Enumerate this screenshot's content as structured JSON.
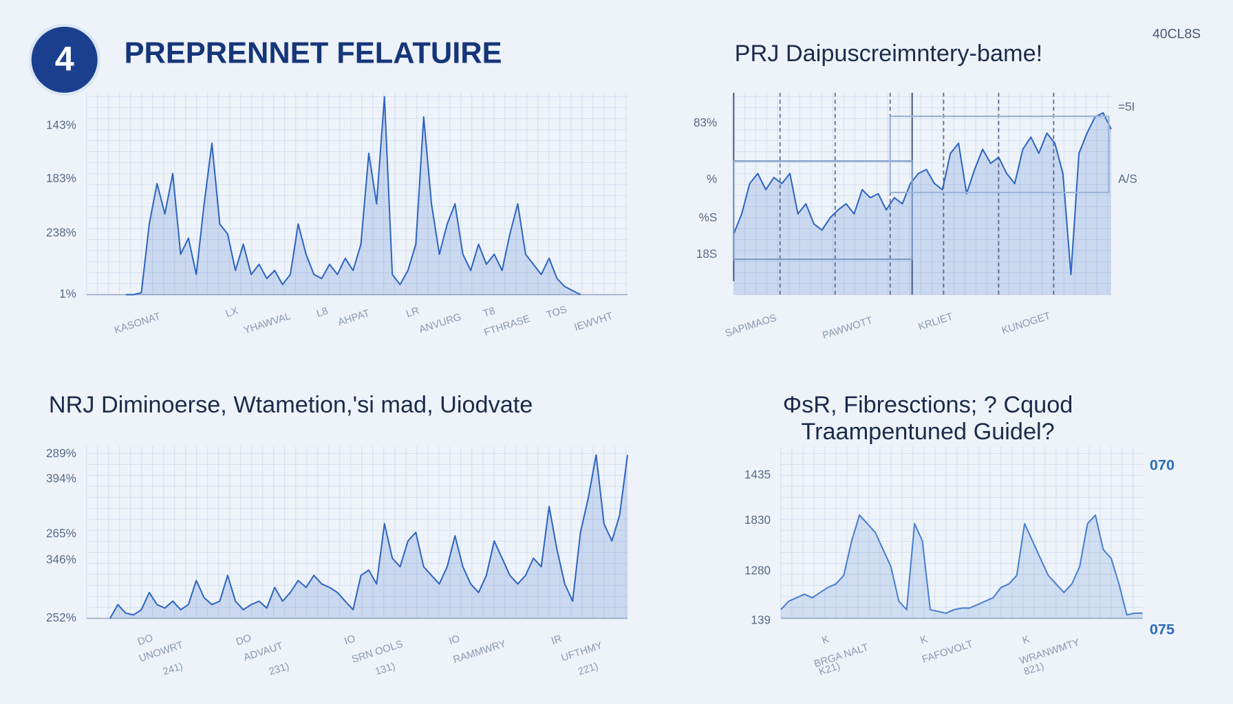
{
  "header": {
    "badge": "4",
    "title": "PREPRENNET FELATUIRE",
    "corner_label": "40CL8S"
  },
  "chart_data": [
    {
      "type": "area",
      "color": "#2f66c0",
      "ylim": [
        0,
        100
      ],
      "y_labels": [
        "143%",
        "183%",
        "238%",
        "1%"
      ],
      "x_labels": [
        "KASONAT",
        "LX",
        "YHAWVAL",
        "L8",
        "AHPAT",
        "LR",
        "ANVURG",
        "T8",
        "FTHRASE",
        "TOS",
        "IEWVHT"
      ],
      "values": [
        null,
        null,
        null,
        null,
        null,
        0,
        0,
        1,
        35,
        55,
        40,
        60,
        20,
        28,
        10,
        45,
        75,
        35,
        30,
        12,
        25,
        10,
        15,
        8,
        12,
        5,
        10,
        35,
        20,
        10,
        8,
        15,
        10,
        18,
        12,
        25,
        70,
        45,
        98,
        10,
        5,
        12,
        25,
        88,
        45,
        20,
        35,
        45,
        20,
        12,
        25,
        15,
        20,
        12,
        30,
        45,
        20,
        15,
        10,
        18,
        8,
        4,
        2,
        0,
        null,
        null,
        null,
        null,
        null,
        null
      ]
    },
    {
      "type": "area",
      "title": "PRJ Daipuscreimntery-bame!",
      "color": "#2f66c0",
      "ylim": [
        0,
        100
      ],
      "y_labels": [
        "83%",
        "%",
        "%S",
        "18S"
      ],
      "y2_labels": [
        "=5I",
        "A/S"
      ],
      "x_labels": [
        "SAPIMAOS",
        "PAWWOTT",
        "KRLIET",
        "KUNOGET"
      ],
      "values": [
        30,
        40,
        55,
        60,
        52,
        58,
        55,
        60,
        40,
        45,
        35,
        32,
        38,
        42,
        45,
        40,
        52,
        48,
        50,
        42,
        48,
        45,
        55,
        60,
        62,
        55,
        52,
        70,
        75,
        50,
        62,
        72,
        65,
        68,
        60,
        55,
        72,
        78,
        70,
        80,
        75,
        60,
        10,
        70,
        80,
        88,
        90,
        82
      ]
    },
    {
      "type": "area",
      "title": "NRJ Diminoerse, Wtametion,'si mad, Uiodvate",
      "color": "#2f66c0",
      "ylim": [
        0,
        100
      ],
      "y_labels": [
        "289%",
        "394%",
        "265%",
        "346%",
        "252%"
      ],
      "x_labels": [
        "DO",
        "DO",
        "IO",
        "IO",
        "IR",
        "UNOWRT",
        "ADVAUT",
        "SRN OOLS",
        "RAMMWRY",
        "UFTHMY",
        "241)",
        "231)",
        "131)",
        "221)"
      ],
      "values": [
        null,
        null,
        null,
        0,
        8,
        3,
        2,
        5,
        15,
        8,
        6,
        10,
        5,
        8,
        22,
        12,
        8,
        10,
        25,
        10,
        5,
        8,
        10,
        6,
        18,
        10,
        15,
        22,
        18,
        25,
        20,
        18,
        15,
        10,
        5,
        25,
        28,
        20,
        55,
        35,
        30,
        45,
        50,
        30,
        25,
        20,
        30,
        48,
        30,
        20,
        15,
        25,
        45,
        35,
        25,
        20,
        25,
        35,
        30,
        65,
        40,
        20,
        10,
        50,
        70,
        95,
        55,
        45,
        60,
        95
      ]
    },
    {
      "type": "area",
      "title": [
        "ΦsR, Fibresctions; ? Cquod",
        "Traampentuned Guidel?"
      ],
      "color": "#4a7fcf",
      "ylim": [
        0,
        100
      ],
      "y_labels": [
        "1435",
        "1830",
        "1280",
        "139"
      ],
      "y2_labels": [
        "070",
        "075"
      ],
      "x_labels": [
        "K",
        "BRGA NALT",
        "K",
        "FAFOVOLT",
        "K",
        "WRANWMTY",
        "K21)",
        "821)"
      ],
      "values": [
        5,
        10,
        12,
        14,
        12,
        15,
        18,
        20,
        25,
        45,
        60,
        55,
        50,
        40,
        30,
        10,
        5,
        55,
        45,
        5,
        4,
        3,
        5,
        6,
        6,
        8,
        10,
        12,
        18,
        20,
        25,
        55,
        45,
        35,
        25,
        20,
        15,
        20,
        30,
        55,
        60,
        40,
        35,
        20,
        2,
        3,
        3
      ]
    }
  ]
}
